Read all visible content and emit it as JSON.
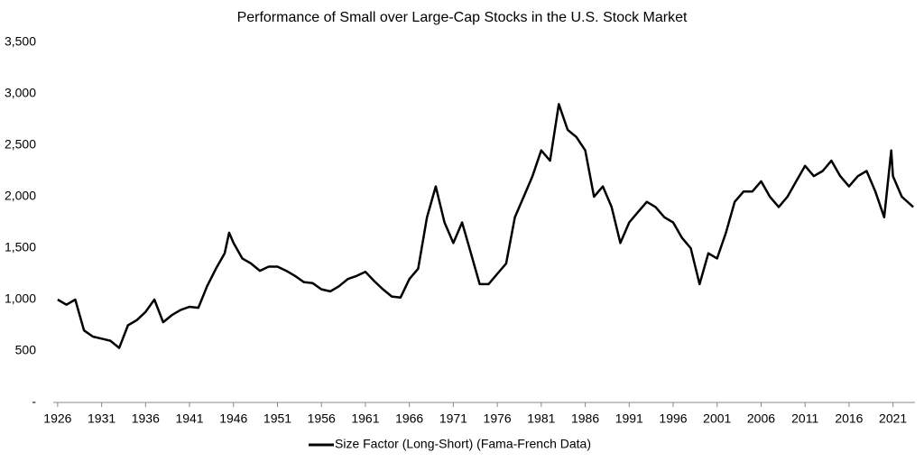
{
  "chart_data": {
    "type": "line",
    "title": "Performance of Small over Large-Cap Stocks in the U.S. Stock Market",
    "x": [
      1926,
      1927,
      1928,
      1929,
      1930,
      1931,
      1932,
      1933,
      1934,
      1935,
      1936,
      1937,
      1938,
      1939,
      1940,
      1941,
      1942,
      1943,
      1944,
      1945,
      1945.5,
      1946,
      1947,
      1948,
      1949,
      1950,
      1951,
      1952,
      1953,
      1954,
      1955,
      1956,
      1957,
      1958,
      1959,
      1960,
      1961,
      1962,
      1963,
      1964,
      1965,
      1966,
      1967,
      1968,
      1969,
      1970,
      1971,
      1972,
      1973,
      1974,
      1975,
      1976,
      1977,
      1978,
      1979,
      1980,
      1981,
      1982,
      1983,
      1984,
      1985,
      1986,
      1987,
      1988,
      1989,
      1990,
      1991,
      1992,
      1993,
      1994,
      1995,
      1996,
      1997,
      1998,
      1999,
      2000,
      2001,
      2002,
      2003,
      2004,
      2005,
      2006,
      2007,
      2008,
      2009,
      2010,
      2011,
      2012,
      2013,
      2014,
      2015,
      2016,
      2017,
      2018,
      2019,
      2020,
      2020.8,
      2021,
      2022,
      2023.3
    ],
    "series": [
      {
        "name": "Size Factor (Long-Short) (Fama-French Data)",
        "color": "#000000",
        "values": [
          1000,
          950,
          1000,
          700,
          640,
          620,
          600,
          530,
          750,
          800,
          880,
          1000,
          780,
          850,
          900,
          930,
          920,
          1130,
          1300,
          1450,
          1650,
          1550,
          1400,
          1350,
          1280,
          1320,
          1320,
          1280,
          1230,
          1170,
          1160,
          1100,
          1080,
          1130,
          1200,
          1230,
          1270,
          1180,
          1100,
          1030,
          1020,
          1200,
          1300,
          1800,
          2100,
          1750,
          1550,
          1750,
          1450,
          1150,
          1150,
          1250,
          1350,
          1800,
          2000,
          2200,
          2450,
          2350,
          2900,
          2650,
          2580,
          2450,
          2000,
          2100,
          1900,
          1550,
          1750,
          1850,
          1950,
          1900,
          1800,
          1750,
          1600,
          1500,
          1150,
          1450,
          1400,
          1650,
          1950,
          2050,
          2050,
          2150,
          2000,
          1900,
          2000,
          2150,
          2300,
          2200,
          2250,
          2350,
          2200,
          2100,
          2200,
          2250,
          2050,
          1800,
          2450,
          2200,
          2000,
          1900
        ]
      }
    ],
    "xlim": [
      1925.5,
      2023.5
    ],
    "xticks": [
      1926,
      1931,
      1936,
      1941,
      1946,
      1951,
      1956,
      1961,
      1966,
      1971,
      1976,
      1981,
      1986,
      1991,
      1996,
      2001,
      2006,
      2011,
      2016,
      2021
    ],
    "ylim": [
      0,
      3500
    ],
    "yticks": [
      {
        "value": 0,
        "label": "-"
      },
      500,
      {
        "value": 1000,
        "label": "1,000"
      },
      {
        "value": 1500,
        "label": "1,500"
      },
      {
        "value": 2000,
        "label": "2,000"
      },
      {
        "value": 2500,
        "label": "2,500"
      },
      {
        "value": 3000,
        "label": "3,000"
      },
      {
        "value": 3500,
        "label": "3,500"
      }
    ],
    "grid": false,
    "legend": "bottom"
  }
}
